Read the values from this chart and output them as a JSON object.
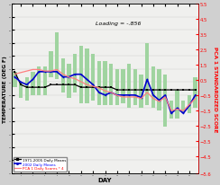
{
  "title": "Loading = -.856",
  "xlabel": "DAY",
  "ylabel_left": "TEMPERATURE (DEG F)",
  "ylabel_right": "PCA 1 STANDARDIZED SCORE",
  "ylim_left": [
    25,
    90
  ],
  "ylim_right": [
    -5.6,
    5.5
  ],
  "yticks_left": [
    25,
    30,
    35,
    40,
    45,
    50,
    55,
    60,
    65,
    70,
    75,
    80,
    85,
    90
  ],
  "yticks_right": [
    5.5,
    4.5,
    3.5,
    2.5,
    1.5,
    0.5,
    -0.5,
    -1.5,
    -2.5,
    -3.5,
    -4.5,
    -5.6
  ],
  "days": [
    1,
    2,
    3,
    4,
    5,
    6,
    7,
    8,
    9,
    10,
    11,
    12,
    13,
    14,
    15,
    16,
    17,
    18,
    19,
    20,
    21,
    22,
    23,
    24,
    25,
    26,
    27,
    28,
    29,
    30,
    31
  ],
  "bar_low": [
    58,
    54,
    53,
    55,
    55,
    55,
    62,
    61,
    56,
    54,
    56,
    52,
    52,
    53,
    51,
    51,
    51,
    51,
    52,
    50,
    51,
    50,
    51,
    50,
    49,
    43,
    46,
    46,
    48,
    48,
    50
  ],
  "bar_high": [
    64,
    60,
    62,
    64,
    66,
    66,
    72,
    79,
    69,
    67,
    71,
    74,
    73,
    71,
    68,
    68,
    67,
    65,
    65,
    67,
    65,
    63,
    75,
    66,
    65,
    63,
    53,
    57,
    53,
    55,
    62
  ],
  "clim_means": [
    64,
    59,
    58,
    58,
    58,
    58,
    59,
    59,
    59,
    59,
    59,
    58,
    58,
    58,
    58,
    58,
    58,
    57,
    57,
    57,
    57,
    57,
    57,
    57,
    57,
    57,
    57,
    57,
    57,
    57,
    57
  ],
  "obs_2002": [
    62,
    60,
    59,
    61,
    64,
    64,
    64,
    64,
    62,
    62,
    63,
    63,
    61,
    59,
    56,
    55,
    56,
    55,
    55,
    55,
    55,
    54,
    61,
    55,
    53,
    55,
    48,
    50,
    48,
    51,
    55
  ],
  "pca1_scores": [
    0.9,
    1.0,
    1.1,
    1.2,
    1.2,
    1.1,
    1.1,
    1.2,
    0.9,
    0.7,
    0.6,
    0.4,
    0.2,
    0.1,
    0.0,
    -0.2,
    -0.3,
    -0.5,
    -0.6,
    -0.6,
    -0.6,
    -0.7,
    -0.3,
    -0.7,
    -0.9,
    -0.6,
    -1.5,
    -1.4,
    -1.5,
    -1.1,
    -0.7
  ],
  "bar_color": "#a0d4a0",
  "clim_color": "#000000",
  "obs_color": "#0000cc",
  "pca_color": "#ff8080",
  "bg_color": "#f0f0ee",
  "fig_color": "#d0d0d0",
  "legend_clim": "1971-2005 Daily Means",
  "legend_obs": "2002 Daily Means",
  "legend_pca": "PCA 1 Daily Scores * 4",
  "xticks": [
    2,
    4,
    6,
    8,
    10,
    12,
    14,
    16,
    18,
    20,
    22,
    24,
    26,
    28,
    30
  ]
}
